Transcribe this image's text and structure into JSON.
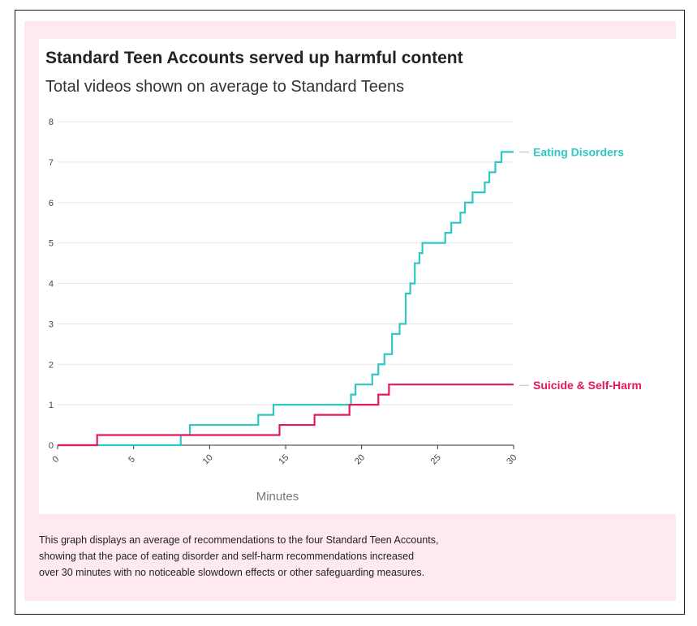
{
  "chart_data": {
    "type": "line",
    "title": "Standard Teen Accounts served up harmful content",
    "subtitle": "Total videos shown on average to Standard Teens",
    "xlabel": "Minutes",
    "ylabel": "",
    "xlim": [
      0,
      30
    ],
    "ylim": [
      0,
      8
    ],
    "xticks": [
      "0",
      "5",
      "10",
      "15",
      "20",
      "25",
      "30"
    ],
    "yticks": [
      "0",
      "1",
      "2",
      "3",
      "4",
      "5",
      "6",
      "7",
      "8"
    ],
    "grid": true,
    "legend": "direct-labels-right",
    "series": [
      {
        "name": "Eating Disorders",
        "color": "#2ec7c6",
        "step": true,
        "x": [
          0,
          8.1,
          8.7,
          13.2,
          14.2,
          19.3,
          19.6,
          20.7,
          21.1,
          21.5,
          22.0,
          22.5,
          22.9,
          23.2,
          23.5,
          23.8,
          24.0,
          24.3,
          25.5,
          25.9,
          26.5,
          26.8,
          27.3,
          28.1,
          28.4,
          28.8,
          29.2,
          29.8
        ],
        "y": [
          0,
          0.25,
          0.5,
          0.75,
          1.0,
          1.25,
          1.5,
          1.75,
          2.0,
          2.25,
          2.75,
          3.0,
          3.75,
          4.0,
          4.5,
          4.75,
          5.0,
          5.0,
          5.25,
          5.5,
          5.75,
          6.0,
          6.25,
          6.5,
          6.75,
          7.0,
          7.25,
          7.25
        ],
        "end_x": 30,
        "end_y": 7.25
      },
      {
        "name": "Suicide & Self-Harm",
        "color": "#e2195c",
        "step": true,
        "x": [
          0,
          2.6,
          14.6,
          16.9,
          19.2,
          21.1,
          21.8
        ],
        "y": [
          0,
          0.25,
          0.5,
          0.75,
          1.0,
          1.25,
          1.5
        ],
        "end_x": 30,
        "end_y": 1.5
      }
    ]
  },
  "caption": {
    "line1": "This graph displays an average of recommendations to the four Standard Teen Accounts,",
    "line2": "showing that the pace of eating disorder and self-harm recommendations increased",
    "line3": "over 30 minutes with no noticeable slowdown effects or other safeguarding measures."
  }
}
